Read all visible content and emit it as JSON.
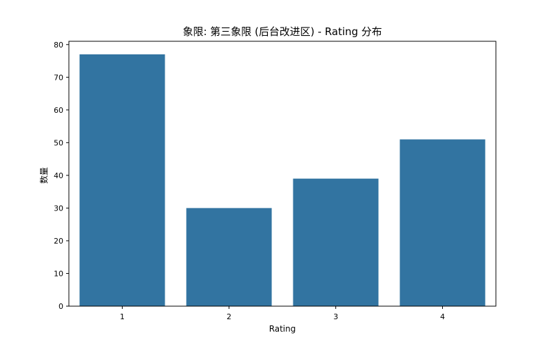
{
  "chart_data": {
    "type": "bar",
    "title": "象限: 第三象限 (后台改进区) - Rating 分布",
    "xlabel": "Rating",
    "ylabel": "数量",
    "categories": [
      "1",
      "2",
      "3",
      "4"
    ],
    "values": [
      77,
      30,
      39,
      51
    ],
    "ylim": [
      0,
      81
    ],
    "yticks": [
      0,
      10,
      20,
      30,
      40,
      50,
      60,
      70,
      80
    ],
    "bar_color": "#3274a1",
    "grid": false,
    "legend": "none"
  }
}
